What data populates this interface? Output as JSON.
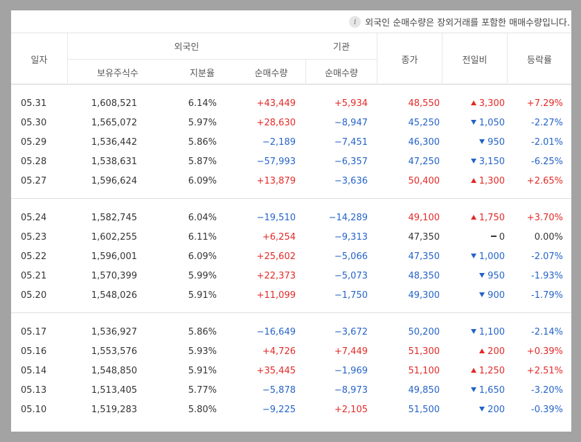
{
  "notice": {
    "icon": "info-icon",
    "text": "외국인 순매수량은 장외거래를 포함한 매매수량입니다."
  },
  "header": {
    "date": "일자",
    "foreign_group": "외국인",
    "institution_group": "기관",
    "holdings": "보유주식수",
    "ratio": "지분율",
    "foreign_net": "순매수량",
    "institution_net": "순매수량",
    "close": "종가",
    "change": "전일비",
    "rate": "등락률"
  },
  "colors": {
    "up": "#e22926",
    "down": "#2463c8",
    "flat": "#333333"
  },
  "groups": [
    {
      "rows": [
        {
          "date": "05.31",
          "holdings": "1,608,521",
          "ratio": "6.14%",
          "foreign_net": "+43,449",
          "institution_net": "+5,934",
          "close": "48,550",
          "change": "3,300",
          "rate": "+7.29%",
          "dir": "up",
          "foreign_dir": "up",
          "inst_dir": "up"
        },
        {
          "date": "05.30",
          "holdings": "1,565,072",
          "ratio": "5.97%",
          "foreign_net": "+28,630",
          "institution_net": "−8,947",
          "close": "45,250",
          "change": "1,050",
          "rate": "-2.27%",
          "dir": "down",
          "foreign_dir": "up",
          "inst_dir": "down"
        },
        {
          "date": "05.29",
          "holdings": "1,536,442",
          "ratio": "5.86%",
          "foreign_net": "−2,189",
          "institution_net": "−7,451",
          "close": "46,300",
          "change": "950",
          "rate": "-2.01%",
          "dir": "down",
          "foreign_dir": "down",
          "inst_dir": "down"
        },
        {
          "date": "05.28",
          "holdings": "1,538,631",
          "ratio": "5.87%",
          "foreign_net": "−57,993",
          "institution_net": "−6,357",
          "close": "47,250",
          "change": "3,150",
          "rate": "-6.25%",
          "dir": "down",
          "foreign_dir": "down",
          "inst_dir": "down"
        },
        {
          "date": "05.27",
          "holdings": "1,596,624",
          "ratio": "6.09%",
          "foreign_net": "+13,879",
          "institution_net": "−3,636",
          "close": "50,400",
          "change": "1,300",
          "rate": "+2.65%",
          "dir": "up",
          "foreign_dir": "up",
          "inst_dir": "down"
        }
      ]
    },
    {
      "rows": [
        {
          "date": "05.24",
          "holdings": "1,582,745",
          "ratio": "6.04%",
          "foreign_net": "−19,510",
          "institution_net": "−14,289",
          "close": "49,100",
          "change": "1,750",
          "rate": "+3.70%",
          "dir": "up",
          "foreign_dir": "down",
          "inst_dir": "down"
        },
        {
          "date": "05.23",
          "holdings": "1,602,255",
          "ratio": "6.11%",
          "foreign_net": "+6,254",
          "institution_net": "−9,313",
          "close": "47,350",
          "change": "0",
          "rate": "0.00%",
          "dir": "flat",
          "foreign_dir": "up",
          "inst_dir": "down"
        },
        {
          "date": "05.22",
          "holdings": "1,596,001",
          "ratio": "6.09%",
          "foreign_net": "+25,602",
          "institution_net": "−5,066",
          "close": "47,350",
          "change": "1,000",
          "rate": "-2.07%",
          "dir": "down",
          "foreign_dir": "up",
          "inst_dir": "down"
        },
        {
          "date": "05.21",
          "holdings": "1,570,399",
          "ratio": "5.99%",
          "foreign_net": "+22,373",
          "institution_net": "−5,073",
          "close": "48,350",
          "change": "950",
          "rate": "-1.93%",
          "dir": "down",
          "foreign_dir": "up",
          "inst_dir": "down"
        },
        {
          "date": "05.20",
          "holdings": "1,548,026",
          "ratio": "5.91%",
          "foreign_net": "+11,099",
          "institution_net": "−1,750",
          "close": "49,300",
          "change": "900",
          "rate": "-1.79%",
          "dir": "down",
          "foreign_dir": "up",
          "inst_dir": "down"
        }
      ]
    },
    {
      "rows": [
        {
          "date": "05.17",
          "holdings": "1,536,927",
          "ratio": "5.86%",
          "foreign_net": "−16,649",
          "institution_net": "−3,672",
          "close": "50,200",
          "change": "1,100",
          "rate": "-2.14%",
          "dir": "down",
          "foreign_dir": "down",
          "inst_dir": "down"
        },
        {
          "date": "05.16",
          "holdings": "1,553,576",
          "ratio": "5.93%",
          "foreign_net": "+4,726",
          "institution_net": "+7,449",
          "close": "51,300",
          "change": "200",
          "rate": "+0.39%",
          "dir": "up",
          "foreign_dir": "up",
          "inst_dir": "up"
        },
        {
          "date": "05.14",
          "holdings": "1,548,850",
          "ratio": "5.91%",
          "foreign_net": "+35,445",
          "institution_net": "−1,969",
          "close": "51,100",
          "change": "1,250",
          "rate": "+2.51%",
          "dir": "up",
          "foreign_dir": "up",
          "inst_dir": "down"
        },
        {
          "date": "05.13",
          "holdings": "1,513,405",
          "ratio": "5.77%",
          "foreign_net": "−5,878",
          "institution_net": "−8,973",
          "close": "49,850",
          "change": "1,650",
          "rate": "-3.20%",
          "dir": "down",
          "foreign_dir": "down",
          "inst_dir": "down"
        },
        {
          "date": "05.10",
          "holdings": "1,519,283",
          "ratio": "5.80%",
          "foreign_net": "−9,225",
          "institution_net": "+2,105",
          "close": "51,500",
          "change": "200",
          "rate": "-0.39%",
          "dir": "down",
          "foreign_dir": "down",
          "inst_dir": "up"
        }
      ]
    }
  ]
}
